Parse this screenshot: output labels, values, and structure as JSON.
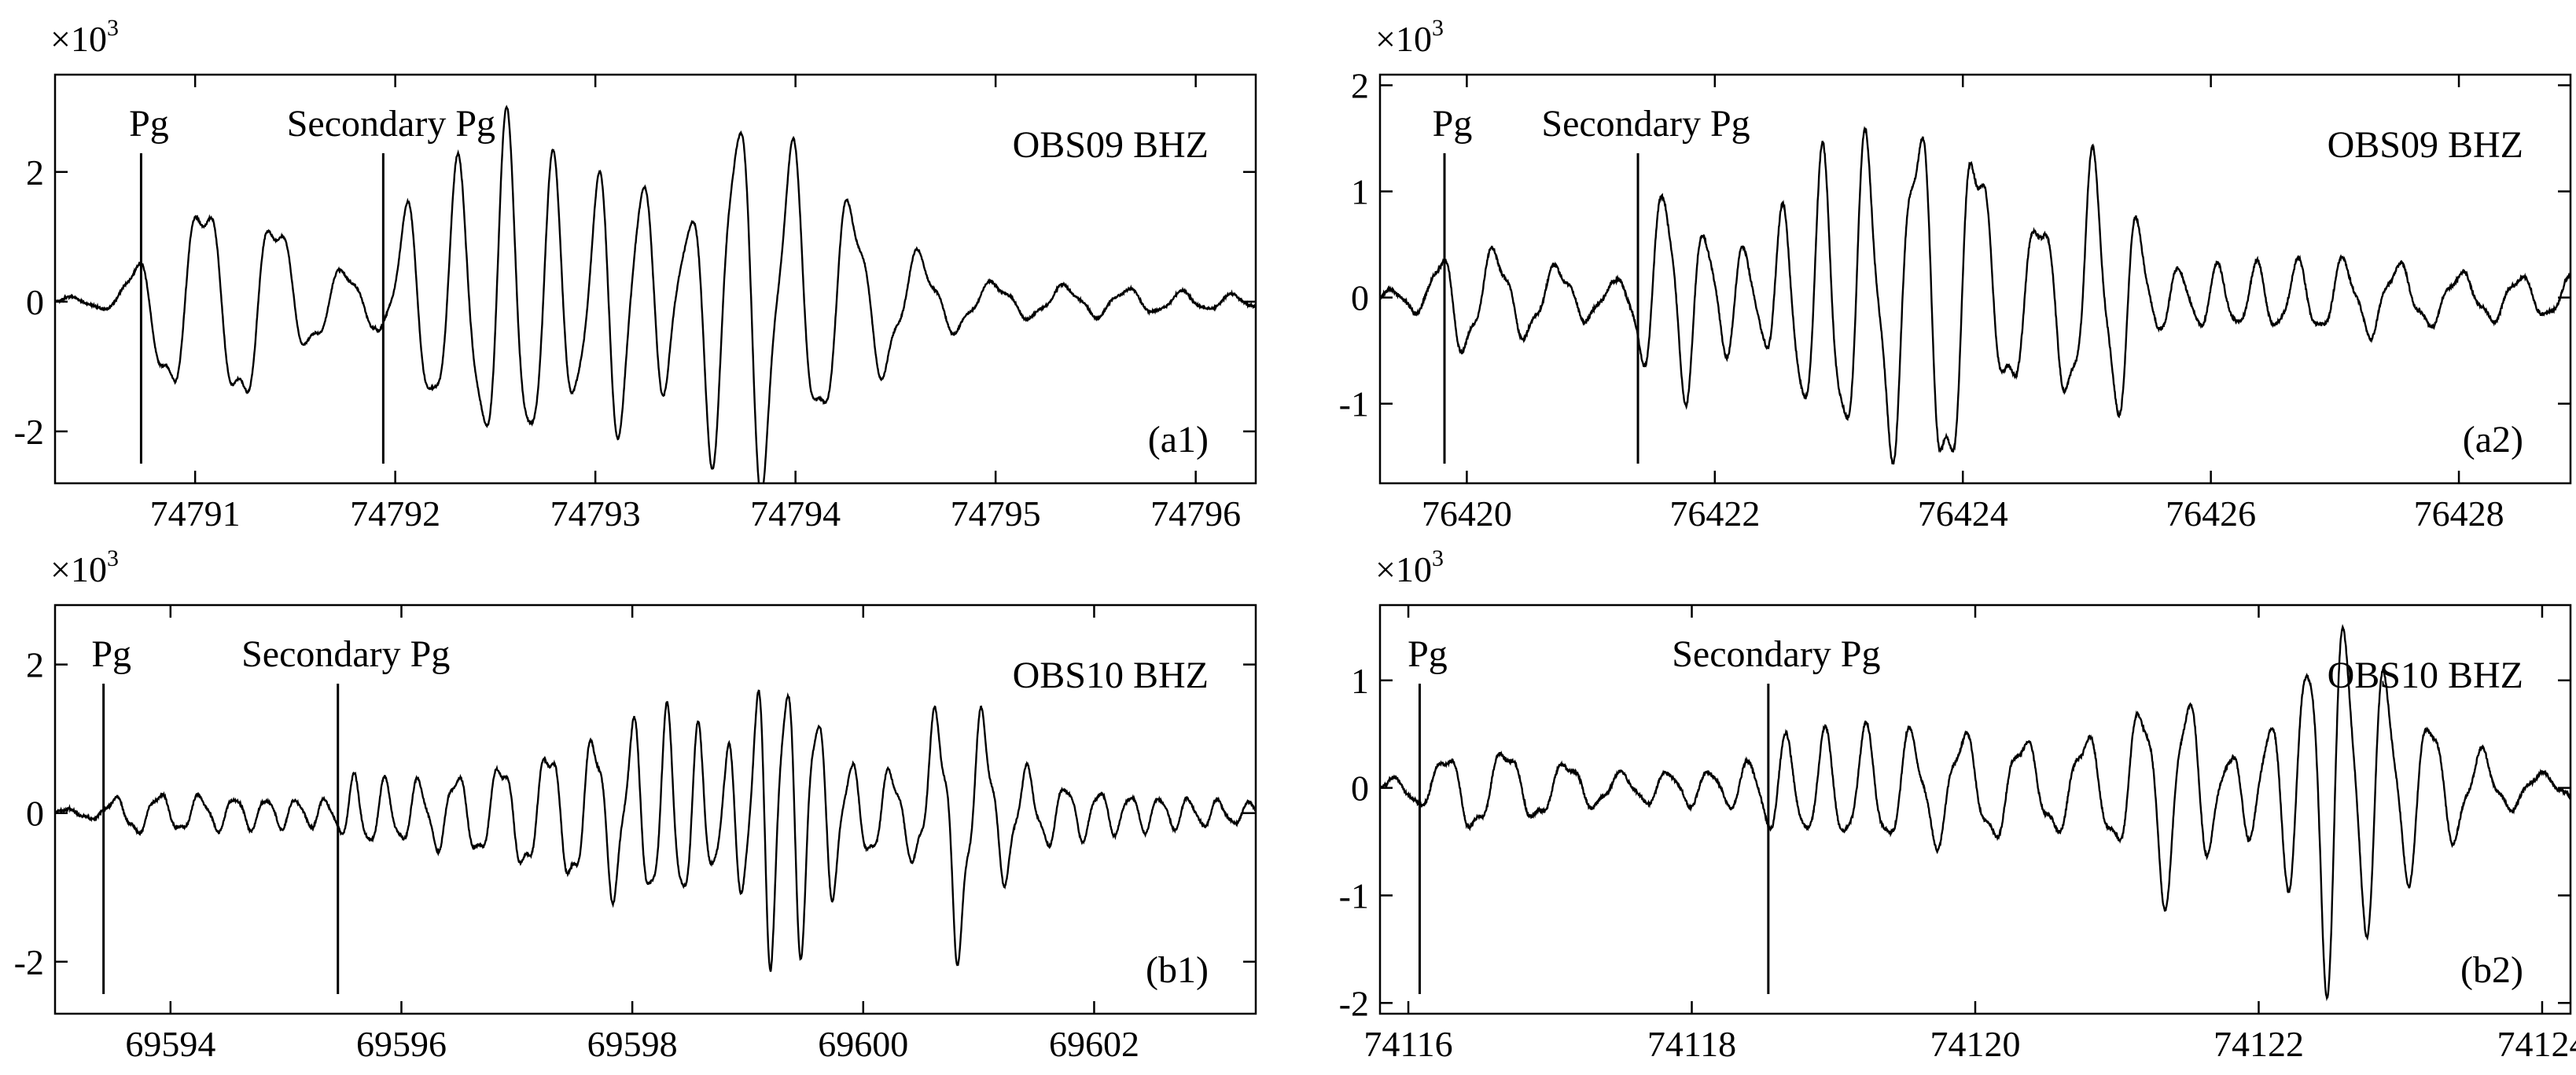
{
  "chart_data": [
    {
      "type": "line",
      "panel_label": "(a1)",
      "station": "OBS09 BHZ",
      "y_multiplier": "×10",
      "y_multiplier_exp": "3",
      "xlim": [
        74790.3,
        74796.3
      ],
      "ylim": [
        -2.8,
        3.5
      ],
      "xticks": [
        74791,
        74792,
        74793,
        74794,
        74795,
        74796
      ],
      "yticks": [
        -2,
        0,
        2
      ],
      "markers": [
        {
          "label": "Pg",
          "x": 74790.73
        },
        {
          "label": "Secondary Pg",
          "x": 74791.94
        }
      ],
      "envelope": [
        [
          74790.3,
          0.05
        ],
        [
          74790.6,
          0.15
        ],
        [
          74790.73,
          0.8
        ],
        [
          74790.9,
          1.7
        ],
        [
          74791.3,
          1.8
        ],
        [
          74791.6,
          0.7
        ],
        [
          74791.9,
          0.4
        ],
        [
          74791.96,
          0.9
        ],
        [
          74792.1,
          1.8
        ],
        [
          74792.4,
          2.4
        ],
        [
          74792.6,
          3.1
        ],
        [
          74792.9,
          1.8
        ],
        [
          74793.2,
          2.5
        ],
        [
          74793.4,
          1.0
        ],
        [
          74793.7,
          3.5
        ],
        [
          74793.9,
          2.8
        ],
        [
          74794.1,
          2.3
        ],
        [
          74794.4,
          1.3
        ],
        [
          74794.7,
          0.6
        ],
        [
          74795.0,
          0.3
        ],
        [
          74795.5,
          0.25
        ],
        [
          74796.3,
          0.1
        ]
      ],
      "dominant_freq": 3.6
    },
    {
      "type": "line",
      "panel_label": "(a2)",
      "station": "OBS09 BHZ",
      "y_multiplier": "×10",
      "y_multiplier_exp": "3",
      "xlim": [
        76419.3,
        76428.9
      ],
      "ylim": [
        -1.75,
        2.1
      ],
      "xticks": [
        76420,
        76422,
        76424,
        76426,
        76428
      ],
      "yticks": [
        -1,
        0,
        1,
        2
      ],
      "markers": [
        {
          "label": "Pg",
          "x": 76419.82
        },
        {
          "label": "Secondary Pg",
          "x": 76421.38
        }
      ],
      "envelope": [
        [
          76419.3,
          0.05
        ],
        [
          76419.7,
          0.2
        ],
        [
          76419.85,
          0.6
        ],
        [
          76420.5,
          0.4
        ],
        [
          76421.2,
          0.15
        ],
        [
          76421.4,
          0.6
        ],
        [
          76421.6,
          1.3
        ],
        [
          76422.0,
          0.6
        ],
        [
          76422.4,
          0.5
        ],
        [
          76422.7,
          1.3
        ],
        [
          76423.1,
          1.6
        ],
        [
          76423.5,
          1.6
        ],
        [
          76423.8,
          2.0
        ],
        [
          76424.0,
          1.9
        ],
        [
          76424.3,
          1.0
        ],
        [
          76424.7,
          0.8
        ],
        [
          76425.0,
          1.4
        ],
        [
          76425.2,
          1.4
        ],
        [
          76425.6,
          0.3
        ],
        [
          76426.5,
          0.35
        ],
        [
          76427.2,
          0.4
        ],
        [
          76428.0,
          0.25
        ],
        [
          76428.9,
          0.2
        ]
      ],
      "dominant_freq": 2.6
    },
    {
      "type": "line",
      "panel_label": "(b1)",
      "station": "OBS10 BHZ",
      "y_multiplier": "×10",
      "y_multiplier_exp": "3",
      "xlim": [
        69593.0,
        69603.4
      ],
      "ylim": [
        -2.7,
        2.8
      ],
      "xticks": [
        69594,
        69596,
        69598,
        69600,
        69602
      ],
      "yticks": [
        -2,
        0,
        2
      ],
      "markers": [
        {
          "label": "Pg",
          "x": 69593.42
        },
        {
          "label": "Secondary Pg",
          "x": 69595.45
        }
      ],
      "envelope": [
        [
          69593.0,
          0.05
        ],
        [
          69593.4,
          0.1
        ],
        [
          69593.6,
          0.3
        ],
        [
          69594.5,
          0.25
        ],
        [
          69595.4,
          0.2
        ],
        [
          69595.6,
          0.55
        ],
        [
          69596.0,
          0.45
        ],
        [
          69596.6,
          0.6
        ],
        [
          69597.2,
          0.9
        ],
        [
          69597.8,
          1.2
        ],
        [
          69598.4,
          1.5
        ],
        [
          69598.8,
          0.8
        ],
        [
          69599.2,
          2.2
        ],
        [
          69599.5,
          1.9
        ],
        [
          69599.9,
          0.7
        ],
        [
          69600.4,
          0.6
        ],
        [
          69600.8,
          2.1
        ],
        [
          69601.1,
          1.2
        ],
        [
          69601.5,
          0.5
        ],
        [
          69602.2,
          0.3
        ],
        [
          69603.4,
          0.15
        ]
      ],
      "dominant_freq": 3.2
    },
    {
      "type": "line",
      "panel_label": "(b2)",
      "station": "OBS10 BHZ",
      "y_multiplier": "×10",
      "y_multiplier_exp": "3",
      "xlim": [
        74115.8,
        74124.2
      ],
      "ylim": [
        -2.1,
        1.7
      ],
      "xticks": [
        74116,
        74118,
        74120,
        74122,
        74124
      ],
      "yticks": [
        -2,
        -1,
        0,
        1
      ],
      "markers": [
        {
          "label": "Pg",
          "x": 74116.08
        },
        {
          "label": "Secondary Pg",
          "x": 74118.54
        }
      ],
      "envelope": [
        [
          74115.8,
          0.05
        ],
        [
          74116.1,
          0.2
        ],
        [
          74116.4,
          0.45
        ],
        [
          74116.8,
          0.35
        ],
        [
          74117.5,
          0.15
        ],
        [
          74118.3,
          0.2
        ],
        [
          74118.6,
          0.5
        ],
        [
          74119.2,
          0.6
        ],
        [
          74120.0,
          0.55
        ],
        [
          74120.6,
          0.45
        ],
        [
          74121.0,
          0.6
        ],
        [
          74121.4,
          1.2
        ],
        [
          74121.8,
          0.3
        ],
        [
          74122.2,
          0.9
        ],
        [
          74122.45,
          2.0
        ],
        [
          74122.7,
          1.6
        ],
        [
          74123.0,
          1.0
        ],
        [
          74123.4,
          0.5
        ],
        [
          74123.8,
          0.2
        ],
        [
          74124.2,
          0.1
        ]
      ],
      "dominant_freq": 3.0
    }
  ]
}
